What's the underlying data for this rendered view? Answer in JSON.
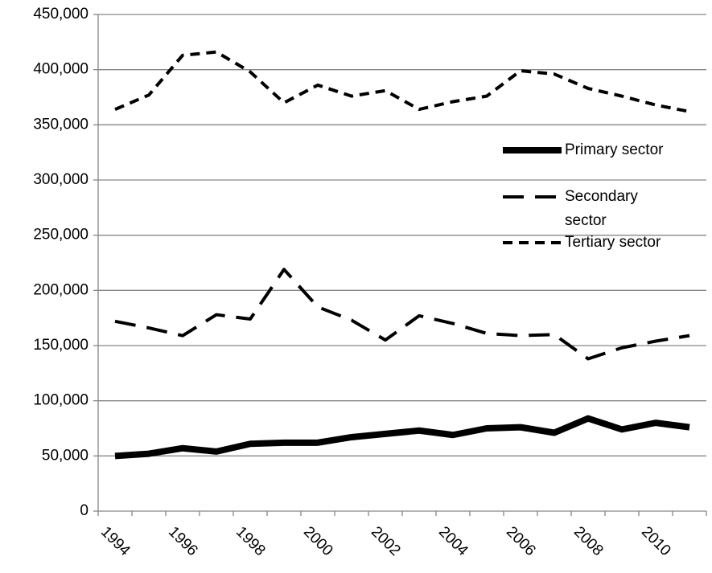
{
  "chart_data": {
    "type": "line",
    "categories": [
      "1994",
      null,
      "1996",
      null,
      "1998",
      null,
      "2000",
      null,
      "2002",
      null,
      "2004",
      null,
      "2006",
      null,
      "2008",
      null,
      "2010",
      null
    ],
    "series": [
      {
        "name": "Primary sector",
        "color": "#000000",
        "line_style": "solid",
        "values": [
          50000,
          52000,
          57000,
          54000,
          61000,
          62000,
          62000,
          67000,
          70000,
          73000,
          69000,
          75000,
          76000,
          71000,
          84000,
          74000,
          80000,
          76000
        ]
      },
      {
        "name": "Secondary sector",
        "color": "#000000",
        "line_style": "dashed",
        "values": [
          172000,
          166000,
          159000,
          178000,
          174000,
          219000,
          185000,
          173000,
          155000,
          177000,
          170000,
          161000,
          159000,
          160000,
          138000,
          148000,
          154000,
          159000
        ]
      },
      {
        "name": "Tertiary sector",
        "color": "#000000",
        "line_style": "dotted",
        "values": [
          364000,
          377000,
          413000,
          416000,
          398000,
          370000,
          386000,
          376000,
          381000,
          364000,
          371000,
          376000,
          399000,
          396000,
          383000,
          376000,
          368000,
          362000
        ]
      }
    ],
    "ylim": [
      0,
      450000
    ],
    "yticks": [
      0,
      {
        "value": 50000,
        "label": "50,000"
      },
      {
        "value": 100000,
        "label": "100,000"
      },
      {
        "value": 150000,
        "label": "150,000"
      },
      {
        "value": 200000,
        "label": "200,000"
      },
      {
        "value": 250000,
        "label": "250,000"
      },
      {
        "value": 300000,
        "label": "300,000"
      },
      {
        "value": 350000,
        "label": "350,000"
      },
      {
        "value": 400000,
        "label": "400,000"
      },
      {
        "value": 450000,
        "label": "450,000"
      }
    ],
    "grid": true,
    "legend": "right"
  }
}
